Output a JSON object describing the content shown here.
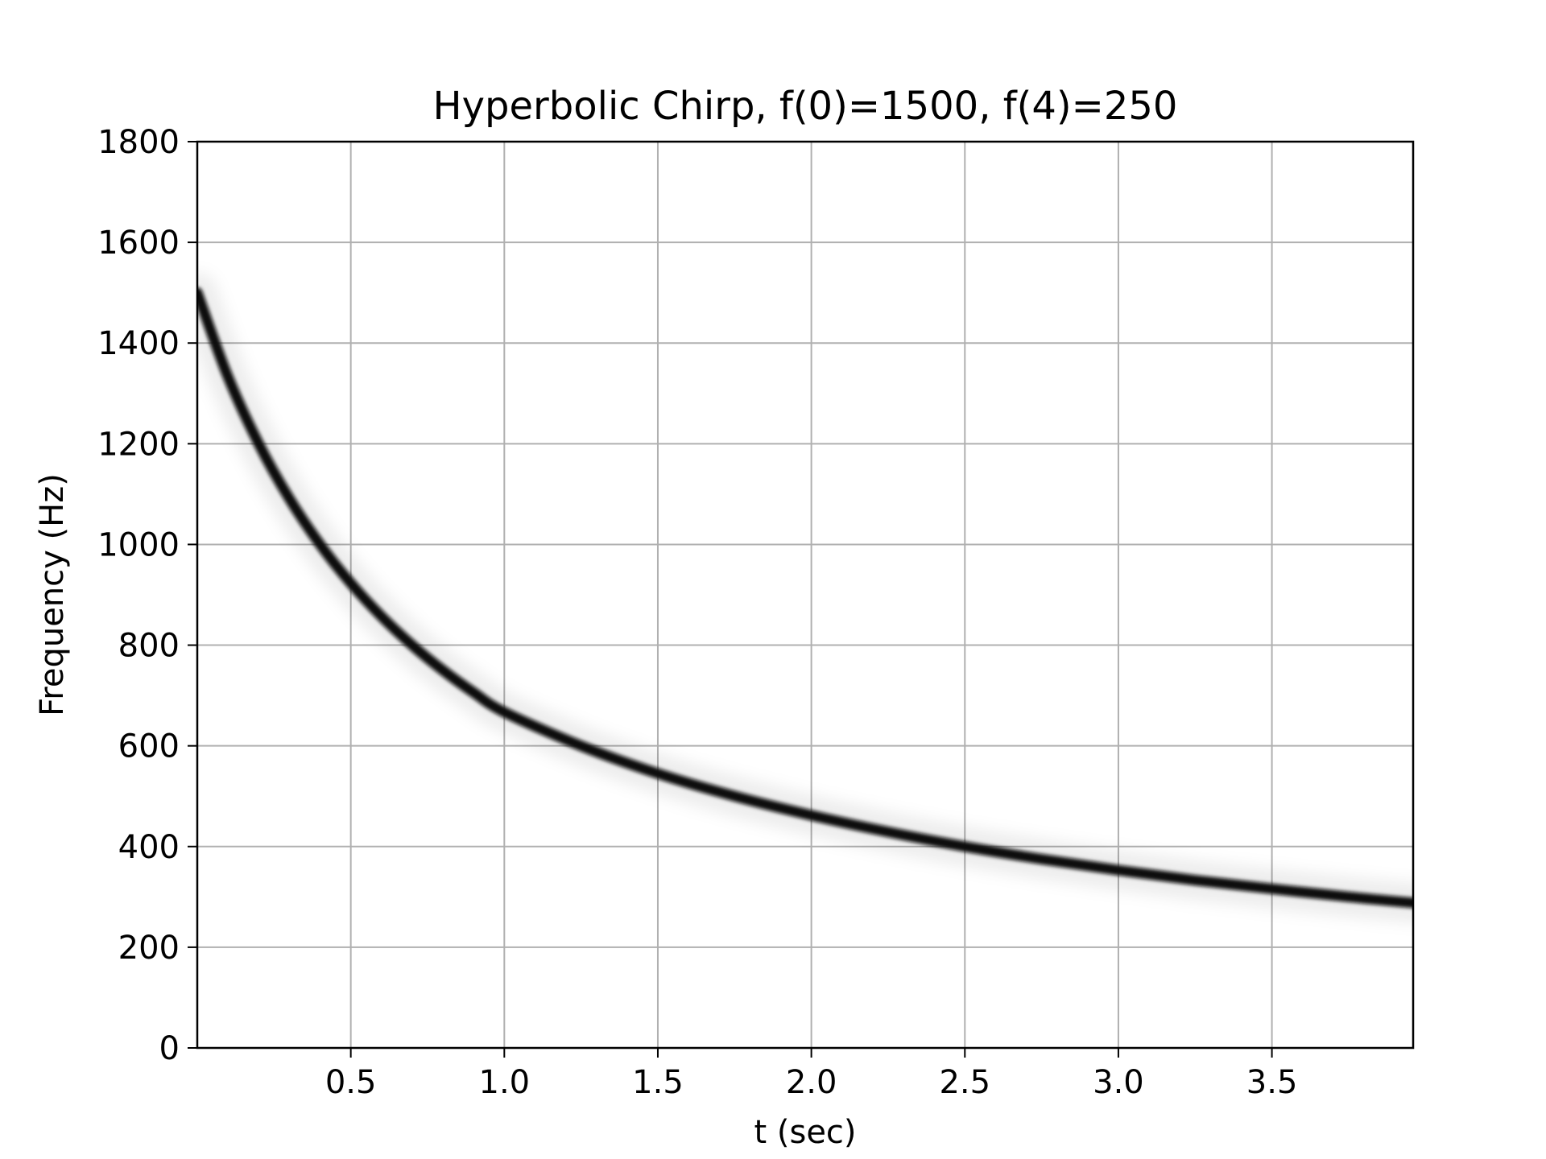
{
  "chart_data": {
    "type": "line",
    "title": "Hyperbolic Chirp, f(0)=1500, f(4)=250",
    "xlabel": "t (sec)",
    "ylabel": "Frequency (Hz)",
    "xlim": [
      0,
      3.96
    ],
    "ylim": [
      0,
      1800
    ],
    "x_ticks": [
      0.5,
      1.0,
      1.5,
      2.0,
      2.5,
      3.0,
      3.5
    ],
    "x_tick_labels": [
      "0.5",
      "1.0",
      "1.5",
      "2.0",
      "2.5",
      "3.0",
      "3.5"
    ],
    "y_ticks": [
      0,
      200,
      400,
      600,
      800,
      1000,
      1200,
      1400,
      1600,
      1800
    ],
    "y_tick_labels": [
      "0",
      "200",
      "400",
      "600",
      "800",
      "1000",
      "1200",
      "1400",
      "1600",
      "1800"
    ],
    "grid": true,
    "series": [
      {
        "x": [
          0.0,
          0.1,
          0.2,
          0.3,
          0.4,
          0.5,
          0.6,
          0.7,
          0.8,
          0.9,
          1.0,
          1.25,
          1.5,
          1.75,
          2.0,
          2.25,
          2.5,
          2.75,
          3.0,
          3.25,
          3.5,
          3.75,
          3.96
        ],
        "values": [
          1500,
          1333,
          1200,
          1091,
          1000,
          923,
          857,
          800,
          750,
          706,
          667,
          600,
          545,
          500,
          462,
          429,
          400,
          375,
          353,
          333,
          316,
          300,
          288
        ],
        "color": "#000000"
      }
    ]
  }
}
